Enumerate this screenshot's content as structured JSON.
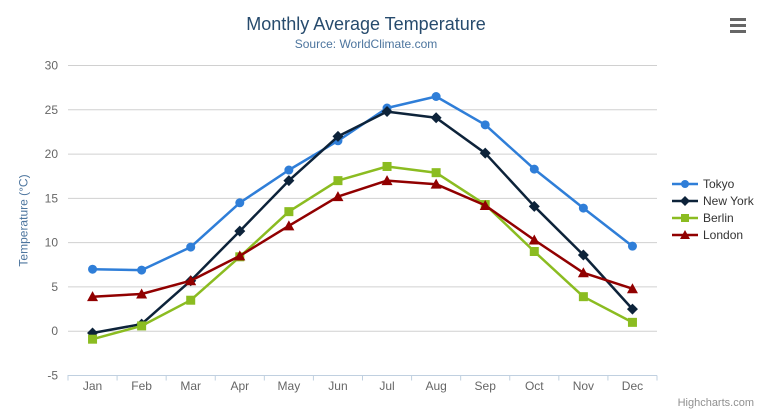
{
  "chart_data": {
    "type": "line",
    "title": "Monthly Average Temperature",
    "subtitle": "Source: WorldClimate.com",
    "xlabel": "",
    "ylabel": "Temperature (°C)",
    "categories": [
      "Jan",
      "Feb",
      "Mar",
      "Apr",
      "May",
      "Jun",
      "Jul",
      "Aug",
      "Sep",
      "Oct",
      "Nov",
      "Dec"
    ],
    "series": [
      {
        "name": "Tokyo",
        "color": "#2f7ed8",
        "marker": "circle",
        "values": [
          7.0,
          6.9,
          9.5,
          14.5,
          18.2,
          21.5,
          25.2,
          26.5,
          23.3,
          18.3,
          13.9,
          9.6
        ]
      },
      {
        "name": "New York",
        "color": "#0d233a",
        "marker": "diamond",
        "values": [
          -0.2,
          0.8,
          5.7,
          11.3,
          17.0,
          22.0,
          24.8,
          24.1,
          20.1,
          14.1,
          8.6,
          2.5
        ]
      },
      {
        "name": "Berlin",
        "color": "#8bbc21",
        "marker": "square",
        "values": [
          -0.9,
          0.6,
          3.5,
          8.4,
          13.5,
          17.0,
          18.6,
          17.9,
          14.3,
          9.0,
          3.9,
          1.0
        ]
      },
      {
        "name": "London",
        "color": "#910000",
        "marker": "triangle",
        "values": [
          3.9,
          4.2,
          5.7,
          8.5,
          11.9,
          15.2,
          17.0,
          16.6,
          14.2,
          10.3,
          6.6,
          4.8
        ]
      }
    ],
    "ylim": [
      -5,
      30
    ],
    "yticks": [
      -5,
      0,
      5,
      10,
      15,
      20,
      25,
      30
    ],
    "grid": true,
    "legend_position": "right"
  },
  "colors": {
    "title": "#274b6d",
    "subtitle": "#4d759e",
    "axis_title": "#4d759e",
    "axis_labels": "#666666",
    "axis_line": "#c0d0e0",
    "gridline": "#d0d0d0",
    "legend_text": "#333333",
    "credit": "#909090",
    "export_icon": "#666666"
  },
  "export_menu": {
    "icon": "hamburger-menu-icon"
  },
  "credits": {
    "label": "Highcharts.com"
  }
}
